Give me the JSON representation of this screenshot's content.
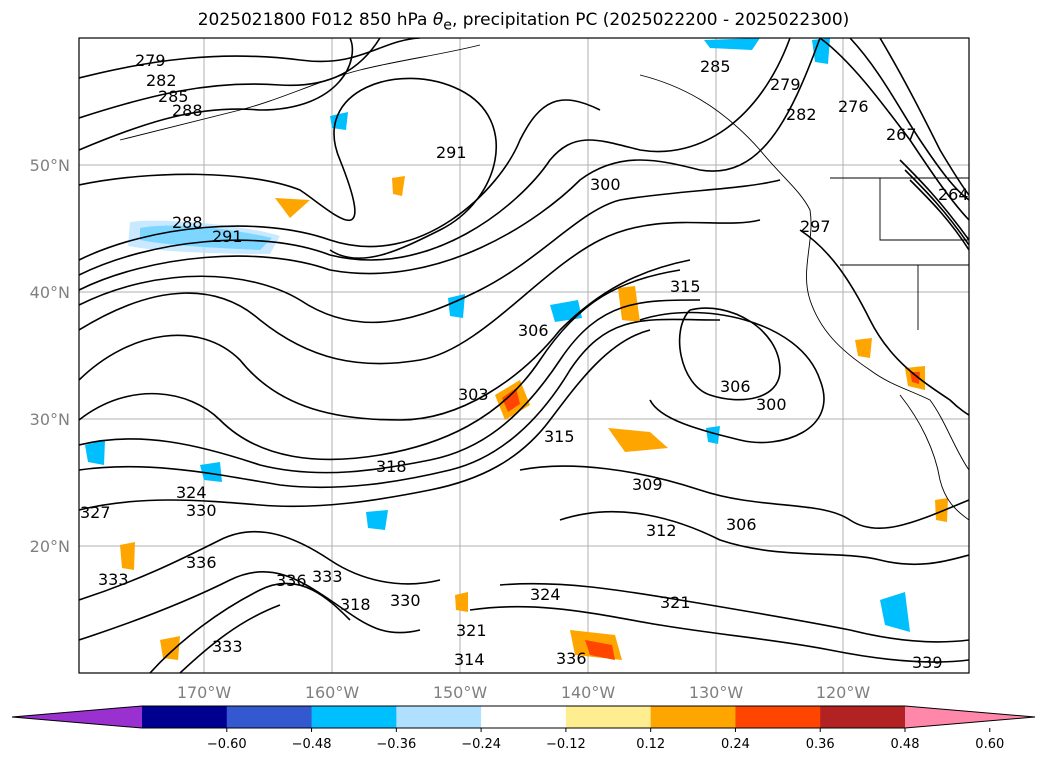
{
  "title": {
    "prefix": "2025021800 F012 850 hPa ",
    "theta": "θ",
    "sub": "e",
    "suffix": ", precipitation PC (2025022200 - 2025022300)"
  },
  "axes": {
    "lat_labels": [
      "50°N",
      "40°N",
      "30°N",
      "20°N"
    ],
    "lon_labels": [
      "170°W",
      "160°W",
      "150°W",
      "140°W",
      "130°W",
      "120°W"
    ]
  },
  "contour_labels": [
    "279",
    "282",
    "285",
    "288",
    "291",
    "288",
    "291",
    "300",
    "303",
    "306",
    "315",
    "306",
    "300",
    "297",
    "276",
    "282",
    "285",
    "279",
    "264",
    "267",
    "318",
    "315",
    "309",
    "312",
    "306",
    "324",
    "327",
    "330",
    "336",
    "333",
    "336",
    "333",
    "324",
    "321",
    "330",
    "333",
    "336",
    "339",
    "318",
    "321",
    "314"
  ],
  "colorbar": {
    "ticks": [
      "−0.60",
      "−0.48",
      "−0.36",
      "−0.24",
      "−0.12",
      "0.12",
      "0.24",
      "0.36",
      "0.48",
      "0.60"
    ],
    "colors": [
      "#9b30d0",
      "#000090",
      "#3358d0",
      "#00bfff",
      "#b0e0ff",
      "#ffffff",
      "#ffee90",
      "#ffa500",
      "#ff4500",
      "#b22222",
      "#ff88aa"
    ]
  }
}
